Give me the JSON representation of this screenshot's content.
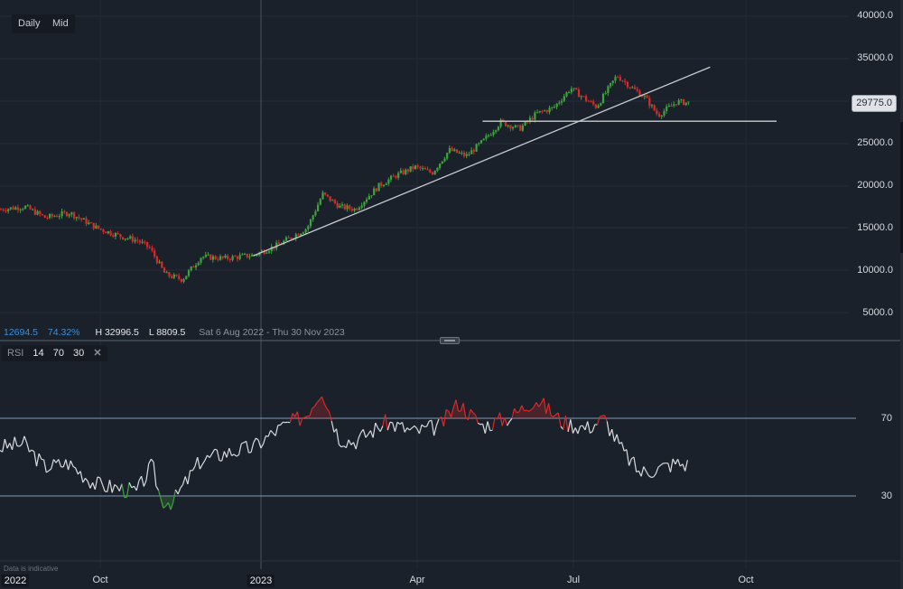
{
  "toolbar": {
    "interval_label": "Daily",
    "price_type_label": "Mid"
  },
  "price_axis": {
    "ticks": [
      "40000.0",
      "35000.0",
      "30000.0",
      "25000.0",
      "20000.0",
      "15000.0",
      "10000.0",
      "5000.0"
    ],
    "current_price": "29775.0"
  },
  "info_bar": {
    "change": "12694.5",
    "change_pct": "74.32%",
    "high": "H 32996.5",
    "low": "L 8809.5",
    "date_range": "Sat 6 Aug 2022 - Thu 30 Nov 2023"
  },
  "rsi_legend": {
    "name": "RSI",
    "period": "14",
    "overbought": "70",
    "oversold": "30",
    "close_icon": "close-icon"
  },
  "rsi_axis": {
    "ticks": [
      "70",
      "30"
    ]
  },
  "time_axis": {
    "labels": [
      "2022",
      "Oct",
      "2023",
      "Apr",
      "Jul",
      "Oct"
    ]
  },
  "footer": {
    "note": "Data is indicative"
  },
  "colors": {
    "background": "#1b212b",
    "up_candle": "#3fa33f",
    "down_candle": "#d92a2a",
    "rsi_line": "#d8dade",
    "level_line": "#7f9bb5",
    "trend_line": "#c9cdd2",
    "accent_blue": "#3c8fd8"
  },
  "chart_data": [
    {
      "type": "candlestick",
      "title": "Daily price (Mid)",
      "x_range": [
        "2022-08-06",
        "2023-11-30"
      ],
      "ylim": [
        5000,
        40000
      ],
      "y_ticks": [
        5000,
        10000,
        15000,
        20000,
        25000,
        30000,
        35000,
        40000
      ],
      "x_tick_labels": [
        "2022",
        "Oct",
        "2023",
        "Apr",
        "Jul",
        "Oct"
      ],
      "high": 32996.5,
      "low": 8809.5,
      "last": 29775.0,
      "change": 12694.5,
      "change_pct": 74.32,
      "approx_close_series": {
        "dates": [
          "2022-08-06",
          "2022-08-20",
          "2022-09-01",
          "2022-09-15",
          "2022-10-01",
          "2022-10-15",
          "2022-10-25",
          "2022-11-01",
          "2022-11-10",
          "2022-11-20",
          "2022-12-01",
          "2022-12-15",
          "2023-01-01",
          "2023-01-15",
          "2023-02-01",
          "2023-02-10",
          "2023-02-20",
          "2023-03-01",
          "2023-03-15",
          "2023-03-25",
          "2023-04-05",
          "2023-04-15",
          "2023-04-25",
          "2023-05-05",
          "2023-05-15",
          "2023-05-25",
          "2023-06-05",
          "2023-06-15",
          "2023-06-25",
          "2023-07-05",
          "2023-07-15",
          "2023-07-20",
          "2023-08-01",
          "2023-08-10",
          "2023-08-17",
          "2023-08-25",
          "2023-09-05",
          "2023-09-12"
        ],
        "values": [
          17200,
          17500,
          16200,
          16800,
          15000,
          14000,
          13500,
          12600,
          9500,
          8900,
          11600,
          11400,
          11800,
          13000,
          15000,
          19000,
          17500,
          17200,
          20000,
          21200,
          22200,
          21500,
          24200,
          23500,
          25300,
          27500,
          26700,
          28500,
          29200,
          31500,
          30000,
          29300,
          33000,
          31500,
          30500,
          28300,
          29900,
          29775
        ]
      },
      "annotations": [
        {
          "type": "trend_line",
          "from": {
            "date": "2023-01-01",
            "price": 11700
          },
          "to": {
            "date": "2023-09-25",
            "price": 34000
          }
        },
        {
          "type": "horizontal_line",
          "price": 27600,
          "from_date": "2023-05-15"
        }
      ]
    },
    {
      "type": "line",
      "title": "RSI 14 70 30",
      "ylim": [
        0,
        100
      ],
      "levels": [
        70,
        30
      ],
      "approx_values": {
        "dates": [
          "2022-08-06",
          "2022-08-20",
          "2022-09-01",
          "2022-09-15",
          "2022-10-01",
          "2022-10-15",
          "2022-10-25",
          "2022-11-03",
          "2022-11-08",
          "2022-11-15",
          "2022-12-01",
          "2022-12-15",
          "2023-01-01",
          "2023-01-15",
          "2023-02-01",
          "2023-02-10",
          "2023-02-20",
          "2023-03-01",
          "2023-03-20",
          "2023-04-05",
          "2023-04-20",
          "2023-05-01",
          "2023-05-15",
          "2023-06-01",
          "2023-06-15",
          "2023-07-01",
          "2023-07-15",
          "2023-07-25",
          "2023-08-05",
          "2023-08-15",
          "2023-08-25",
          "2023-09-05",
          "2023-09-12"
        ],
        "values": [
          55,
          57,
          45,
          47,
          36,
          34,
          32,
          46,
          28,
          27,
          48,
          52,
          55,
          64,
          72,
          85,
          60,
          58,
          68,
          63,
          66,
          78,
          66,
          71,
          80,
          68,
          65,
          70,
          53,
          42,
          44,
          47,
          46
        ]
      }
    }
  ]
}
